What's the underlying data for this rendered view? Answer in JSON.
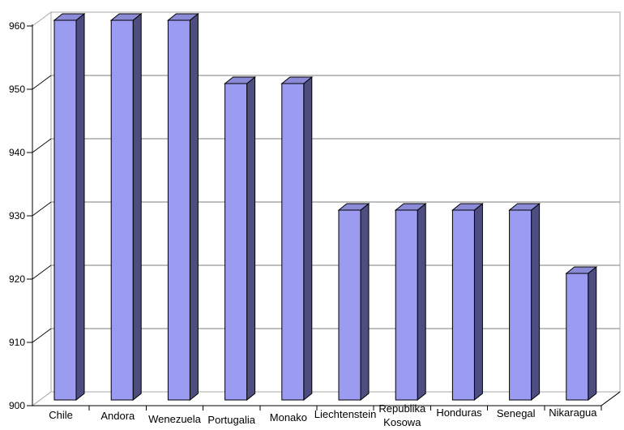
{
  "chart_data": {
    "type": "bar",
    "style": "3d-column",
    "title": "",
    "categories": [
      "Chile",
      "Andora",
      "Wenezuela",
      "Portugalia",
      "Monako",
      "Liechtenstein",
      "Republika\nKosowa",
      "Honduras",
      "Senegal",
      "Nikaragua"
    ],
    "values": [
      960,
      960,
      960,
      950,
      950,
      930,
      930,
      930,
      930,
      920
    ],
    "xlabel": "",
    "ylabel": "",
    "ylim": [
      900,
      960
    ],
    "yticks": [
      900,
      910,
      920,
      930,
      940,
      950,
      960
    ],
    "ytick_labels": [
      "900",
      "910",
      "920",
      "930",
      "940",
      "950",
      "960"
    ],
    "grid": true,
    "legend": false
  },
  "colors": {
    "bar_front": "#9b9bf1",
    "bar_top": "#8a8ad6",
    "bar_side": "#4d4d80",
    "bar_outline": "#000000",
    "gridline": "#7d7d7d",
    "wall_border": "#a8a8a8",
    "axis": "#000000",
    "text": "#000000",
    "background": "#ffffff"
  }
}
